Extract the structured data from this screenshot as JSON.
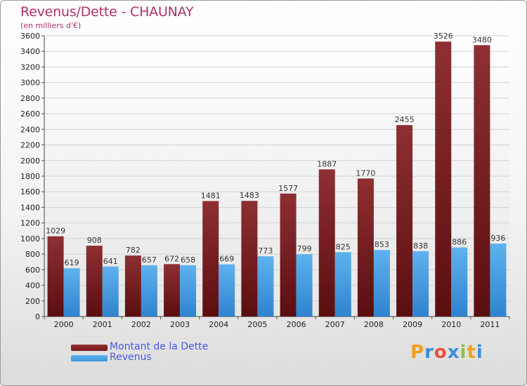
{
  "chart_data": {
    "type": "bar",
    "title": "Revenus/Dette - CHAUNAY",
    "subtitle": "(en milliers d'€)",
    "xlabel": "",
    "ylabel": "",
    "ylim": [
      0,
      3600
    ],
    "yticks": [
      0,
      200,
      400,
      600,
      800,
      1000,
      1200,
      1400,
      1600,
      1800,
      2000,
      2200,
      2400,
      2600,
      2800,
      3000,
      3200,
      3400,
      3600
    ],
    "grid": true,
    "legend_position": "bottom-left",
    "categories": [
      "2000",
      "2001",
      "2002",
      "2003",
      "2004",
      "2005",
      "2006",
      "2007",
      "2008",
      "2009",
      "2010",
      "2011"
    ],
    "series": [
      {
        "name": "Montant de la Dette",
        "color": "#7a1a1e",
        "values": [
          1029,
          908,
          782,
          672,
          1481,
          1483,
          1577,
          1887,
          1770,
          2455,
          3526,
          3480
        ]
      },
      {
        "name": "Revenus",
        "color": "#3f95dc",
        "values": [
          619,
          641,
          657,
          658,
          669,
          773,
          799,
          825,
          853,
          838,
          886,
          936
        ]
      }
    ]
  },
  "logo": {
    "letters": [
      "P",
      "r",
      "o",
      "x",
      "i",
      "t",
      "i"
    ],
    "colors": [
      "#f0a020",
      "#3b8ed8",
      "#e8503a",
      "#3b8ed8",
      "#8bc34a",
      "#f0a020",
      "#3b8ed8"
    ]
  }
}
